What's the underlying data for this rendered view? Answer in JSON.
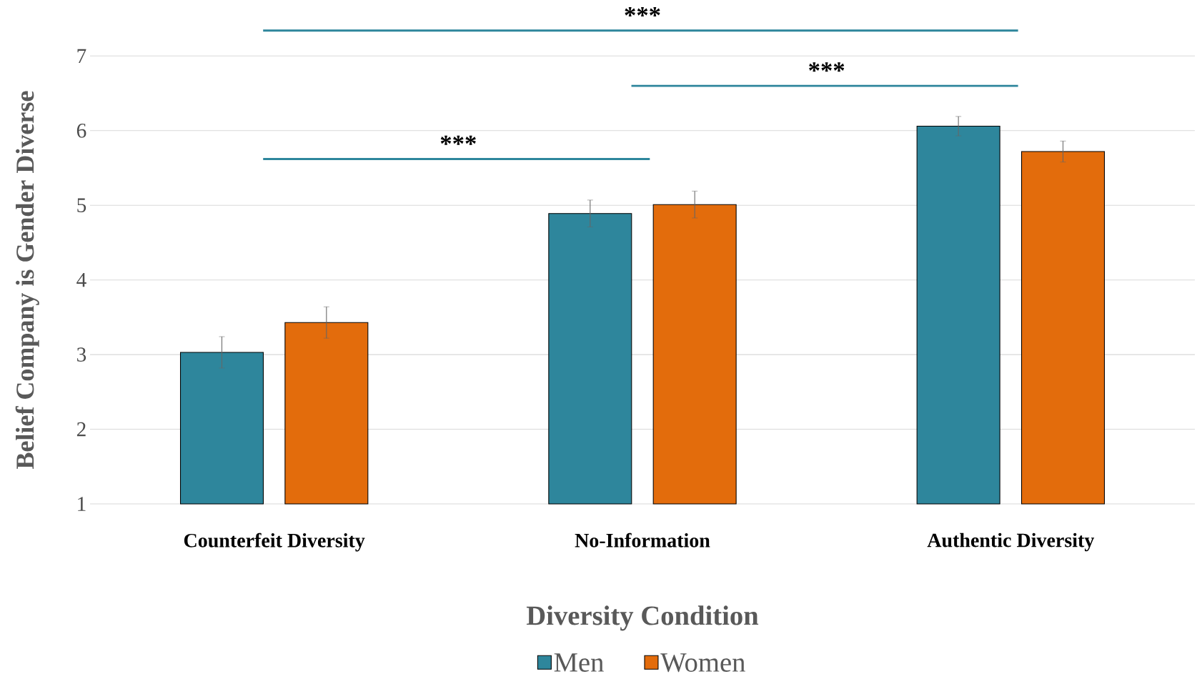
{
  "chart_data": {
    "type": "bar",
    "xlabel": "Diversity Condition",
    "ylabel": "Belief Company is Gender Diverse",
    "categories": [
      "Counterfeit Diversity",
      "No-Information",
      "Authentic Diversity"
    ],
    "series": [
      {
        "name": "Men",
        "color": "#2e869c",
        "values": [
          3.03,
          4.89,
          6.06
        ],
        "errors": [
          0.21,
          0.18,
          0.13
        ]
      },
      {
        "name": "Women",
        "color": "#e36c0c",
        "values": [
          3.43,
          5.01,
          5.72
        ],
        "errors": [
          0.21,
          0.18,
          0.14
        ]
      }
    ],
    "ylim": [
      1,
      7
    ],
    "yticks": [
      1,
      2,
      3,
      4,
      5,
      6,
      7
    ],
    "grid": "y",
    "legend": "bottom",
    "annotations": [
      "***",
      "***",
      "***"
    ]
  }
}
